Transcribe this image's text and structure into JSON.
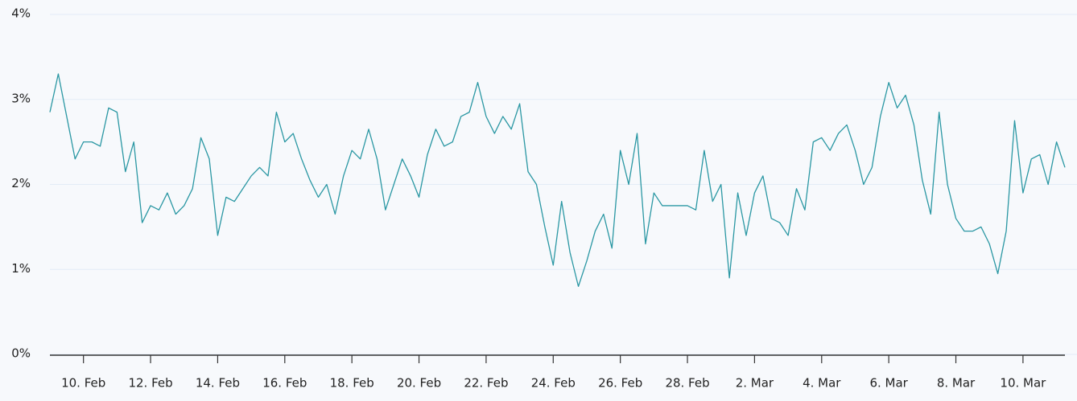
{
  "chart_data": {
    "type": "line",
    "categories": [
      null,
      null,
      null,
      null,
      "10. Feb",
      null,
      null,
      null,
      null,
      null,
      null,
      null,
      "12. Feb",
      null,
      null,
      null,
      null,
      null,
      null,
      null,
      "14. Feb",
      null,
      null,
      null,
      null,
      null,
      null,
      null,
      "16. Feb",
      null,
      null,
      null,
      null,
      null,
      null,
      null,
      "18. Feb",
      null,
      null,
      null,
      null,
      null,
      null,
      null,
      "20. Feb",
      null,
      null,
      null,
      null,
      null,
      null,
      null,
      "22. Feb",
      null,
      null,
      null,
      null,
      null,
      null,
      null,
      "24. Feb",
      null,
      null,
      null,
      null,
      null,
      null,
      null,
      "26. Feb",
      null,
      null,
      null,
      null,
      null,
      null,
      null,
      "28. Feb",
      null,
      null,
      null,
      null,
      null,
      null,
      null,
      "2. Mar",
      null,
      null,
      null,
      null,
      null,
      null,
      null,
      "4. Mar",
      null,
      null,
      null,
      null,
      null,
      null,
      null,
      "6. Mar",
      null,
      null,
      null,
      null,
      null,
      null,
      null,
      "8. Mar",
      null,
      null,
      null,
      null,
      null,
      null,
      null,
      "10. Mar",
      null,
      null,
      null,
      null,
      null
    ],
    "series": [
      {
        "color": "#2a97a3",
        "values": [
          2.85,
          3.3,
          2.8,
          2.3,
          2.5,
          2.5,
          2.45,
          2.9,
          2.85,
          2.15,
          2.5,
          1.55,
          1.75,
          1.7,
          1.9,
          1.65,
          1.75,
          1.95,
          2.55,
          2.3,
          1.4,
          1.85,
          1.8,
          1.95,
          2.1,
          2.2,
          2.1,
          2.85,
          2.5,
          2.6,
          2.3,
          2.05,
          1.85,
          2.0,
          1.65,
          2.1,
          2.4,
          2.3,
          2.65,
          2.3,
          1.7,
          2.0,
          2.3,
          2.1,
          1.85,
          2.35,
          2.65,
          2.45,
          2.5,
          2.8,
          2.85,
          3.2,
          2.8,
          2.6,
          2.8,
          2.65,
          2.95,
          2.15,
          2.0,
          1.5,
          1.05,
          1.8,
          1.2,
          0.8,
          1.1,
          1.45,
          1.65,
          1.25,
          2.4,
          2.0,
          2.6,
          1.3,
          1.9,
          1.75,
          1.75,
          1.75,
          1.75,
          1.7,
          2.4,
          1.8,
          2.0,
          0.9,
          1.9,
          1.4,
          1.9,
          2.1,
          1.6,
          1.55,
          1.4,
          1.95,
          1.7,
          2.5,
          2.55,
          2.4,
          2.6,
          2.7,
          2.4,
          2.0,
          2.2,
          2.8,
          3.2,
          2.9,
          3.05,
          2.7,
          2.05,
          1.65,
          2.85,
          2.0,
          1.6,
          1.45,
          1.45,
          1.5,
          1.3,
          0.95,
          1.45,
          2.75,
          1.9,
          2.3,
          2.35,
          2.0,
          2.5,
          2.2
        ]
      }
    ],
    "ylim": [
      0,
      4
    ],
    "yticks": [
      {
        "value": 0,
        "label": "0%"
      },
      {
        "value": 1,
        "label": "1%"
      },
      {
        "value": 2,
        "label": "2%"
      },
      {
        "value": 3,
        "label": "3%"
      },
      {
        "value": 4,
        "label": "4%"
      }
    ],
    "grid": true
  }
}
